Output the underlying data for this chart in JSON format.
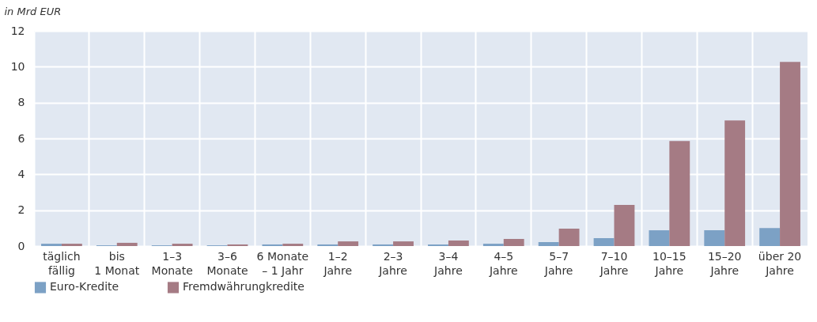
{
  "chart_data": {
    "type": "bar",
    "ylabel": "in Mrd EUR",
    "categories": [
      "täglich\nfällig",
      "bis\n1 Monat",
      "1–3\nMonate",
      "3–6\nMonate",
      "6 Monate\n– 1 Jahr",
      "1–2\nJahre",
      "2–3\nJahre",
      "3–4\nJahre",
      "4–5\nJahre",
      "5–7\nJahre",
      "7–10\nJahre",
      "10–15\nJahre",
      "15–20\nJahre",
      "über 20\nJahre"
    ],
    "series": [
      {
        "name": "Euro-Kredite",
        "color": "#7ca1c5",
        "values": [
          0.13,
          0.04,
          0.04,
          0.04,
          0.09,
          0.09,
          0.09,
          0.09,
          0.13,
          0.22,
          0.44,
          0.88,
          0.88,
          1.0
        ]
      },
      {
        "name": "Fremdwährungkredite",
        "color": "#a57b84",
        "values": [
          0.13,
          0.18,
          0.13,
          0.09,
          0.13,
          0.26,
          0.26,
          0.31,
          0.4,
          0.97,
          2.29,
          5.86,
          7.0,
          10.27
        ]
      }
    ],
    "ylim": [
      0,
      12
    ],
    "yticks": [
      0,
      2,
      4,
      6,
      8,
      10,
      12
    ],
    "grid": true,
    "legend": "bottom left"
  }
}
